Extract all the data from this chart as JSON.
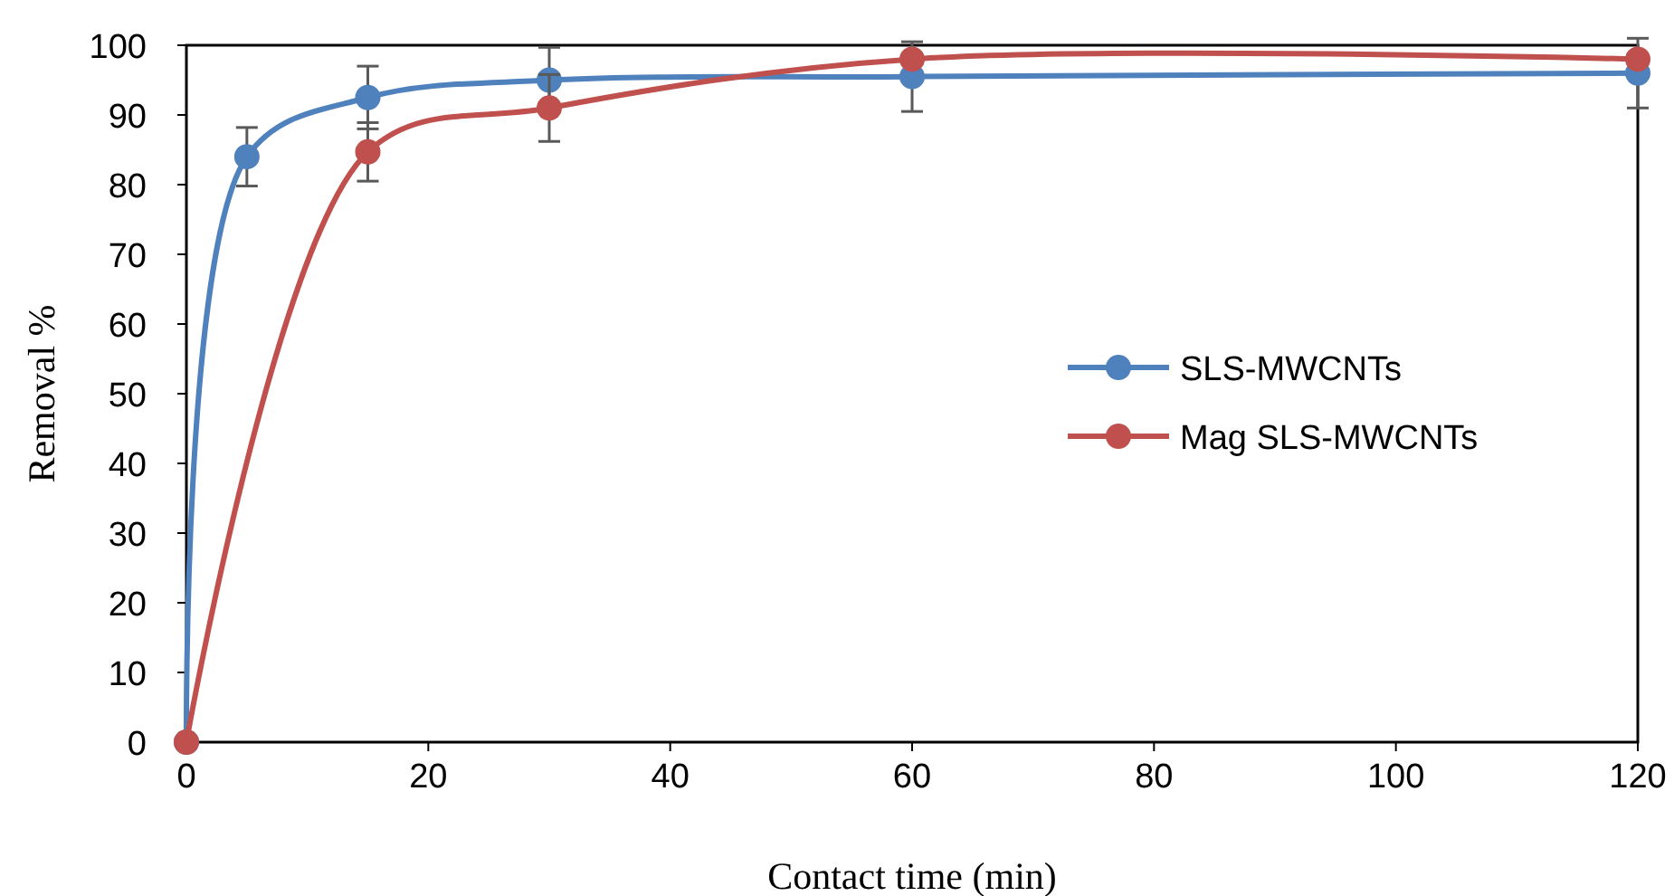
{
  "chart_data": {
    "type": "line",
    "xlabel": "Contact time (min)",
    "ylabel": "Removal %",
    "x": [
      0,
      5,
      15,
      30,
      60,
      120
    ],
    "xlim": [
      0,
      120
    ],
    "xticks": [
      0,
      20,
      40,
      60,
      80,
      100,
      120
    ],
    "ylim": [
      0,
      100
    ],
    "yticks": [
      0,
      10,
      20,
      30,
      40,
      50,
      60,
      70,
      80,
      90,
      100
    ],
    "grid": false,
    "legend": "right",
    "marker": "circle",
    "line_style": "solid",
    "series": [
      {
        "name": "SLS-MWCNTs",
        "color": "#4f81bd",
        "values": [
          0,
          84,
          92.5,
          95,
          95.5,
          96
        ],
        "errors": [
          null,
          4.2,
          4.5,
          4.7,
          5,
          5
        ]
      },
      {
        "name": "Mag SLS-MWCNTs",
        "color": "#c0504d",
        "x": [
          0,
          15,
          30,
          60,
          120
        ],
        "values": [
          0,
          84.7,
          91,
          98,
          98
        ],
        "errors": [
          null,
          4.2,
          4.8,
          null,
          null
        ]
      }
    ]
  }
}
